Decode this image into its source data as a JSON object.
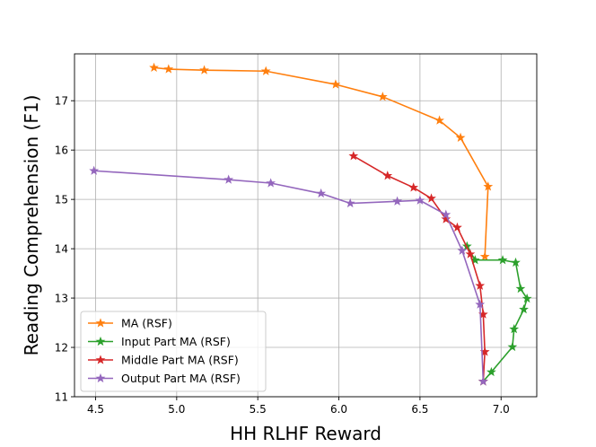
{
  "chart_data": {
    "type": "line",
    "title": "",
    "xlabel": "HH RLHF Reward",
    "ylabel": "Reading Comprehension (F1)",
    "xlim": [
      4.37,
      7.22
    ],
    "ylim": [
      11.0,
      17.95
    ],
    "xticks": [
      4.5,
      5.0,
      5.5,
      6.0,
      6.5,
      7.0
    ],
    "xtick_labels": [
      "4.5",
      "5.0",
      "5.5",
      "6.0",
      "6.5",
      "7.0"
    ],
    "yticks": [
      11,
      12,
      13,
      14,
      15,
      16,
      17
    ],
    "ytick_labels": [
      "11",
      "12",
      "13",
      "14",
      "15",
      "16",
      "17"
    ],
    "grid": true,
    "legend_position": "lower-left",
    "marker": "star",
    "series": [
      {
        "name": "MA (RSF)",
        "color": "#ff7f0e",
        "x": [
          4.86,
          4.95,
          5.17,
          5.55,
          5.98,
          6.27,
          6.62,
          6.75,
          6.92,
          6.9
        ],
        "y": [
          17.67,
          17.64,
          17.62,
          17.6,
          17.33,
          17.08,
          16.6,
          16.25,
          15.26,
          13.84
        ]
      },
      {
        "name": "Input Part MA (RSF)",
        "color": "#2ca02c",
        "x": [
          6.79,
          6.84,
          7.01,
          7.09,
          7.12,
          7.16,
          7.14,
          7.08,
          7.07,
          6.94,
          6.89
        ],
        "y": [
          14.05,
          13.77,
          13.77,
          13.72,
          13.19,
          12.99,
          12.77,
          12.37,
          12.01,
          11.5,
          11.31
        ]
      },
      {
        "name": "Middle Part MA (RSF)",
        "color": "#d62728",
        "x": [
          6.09,
          6.3,
          6.46,
          6.57,
          6.66,
          6.73,
          6.81,
          6.87,
          6.89,
          6.9,
          6.89
        ],
        "y": [
          15.88,
          15.48,
          15.24,
          15.02,
          14.6,
          14.43,
          13.89,
          13.25,
          12.67,
          11.91,
          11.31
        ]
      },
      {
        "name": "Output Part MA (RSF)",
        "color": "#9467bd",
        "x": [
          4.49,
          5.32,
          5.58,
          5.89,
          6.07,
          6.36,
          6.5,
          6.66,
          6.76,
          6.87,
          6.89
        ],
        "y": [
          15.58,
          15.4,
          15.33,
          15.12,
          14.92,
          14.96,
          14.98,
          14.69,
          13.96,
          12.87,
          11.31
        ]
      }
    ]
  }
}
